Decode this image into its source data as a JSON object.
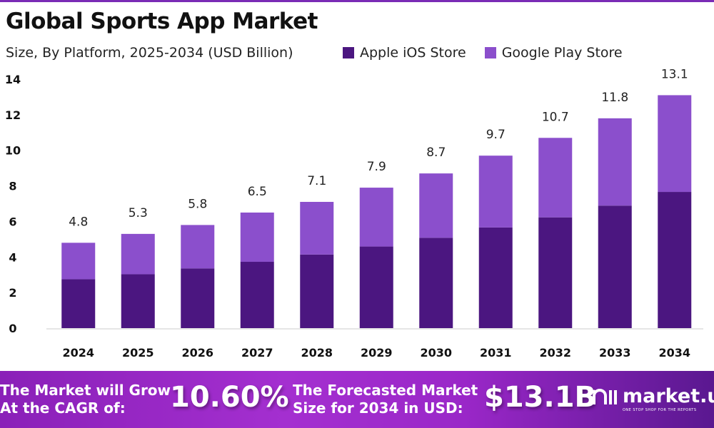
{
  "chart_data": {
    "type": "bar",
    "stacked": true,
    "title": "Global Sports App Market",
    "subtitle": "Size, By Platform, 2025-2034 (USD Billion)",
    "xlabel": "",
    "ylabel": "",
    "ylim": [
      0,
      14
    ],
    "yticks": [
      0,
      2,
      4,
      6,
      8,
      10,
      12,
      14
    ],
    "legend_position": "top-right",
    "categories": [
      "2024",
      "2025",
      "2026",
      "2027",
      "2028",
      "2029",
      "2030",
      "2031",
      "2032",
      "2033",
      "2034"
    ],
    "series": [
      {
        "name": "Apple iOS Store",
        "color": "#4b1680",
        "values": [
          2.75,
          3.03,
          3.36,
          3.73,
          4.14,
          4.59,
          5.08,
          5.66,
          6.23,
          6.89,
          7.66
        ]
      },
      {
        "name": "Google Play Store",
        "color": "#8b4fcc",
        "values": [
          2.05,
          2.27,
          2.44,
          2.77,
          2.96,
          3.31,
          3.62,
          4.04,
          4.47,
          4.91,
          5.44
        ]
      }
    ],
    "totals": [
      "4.8",
      "5.3",
      "5.8",
      "6.5",
      "7.1",
      "7.9",
      "8.7",
      "9.7",
      "10.7",
      "11.8",
      "13.1"
    ]
  },
  "banner": {
    "cagr_label_1": "The Market will Grow",
    "cagr_label_2": "At the CAGR of:",
    "cagr_value": "10.60%",
    "forecast_label_1": "The Forecasted Market",
    "forecast_label_2": "Size for 2034 in USD:",
    "forecast_value": "$13.1B",
    "logo_text": "market.us",
    "logo_tagline": "ONE STOP SHOP FOR THE REPORTS"
  }
}
